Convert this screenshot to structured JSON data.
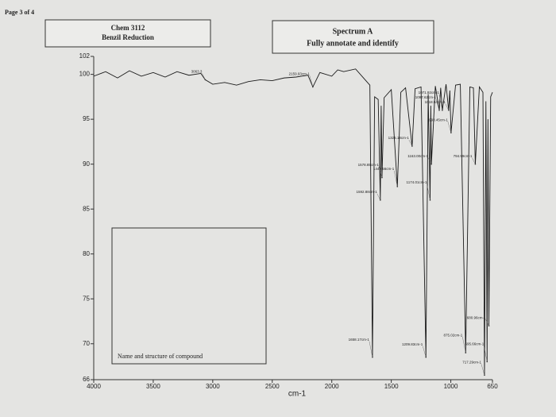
{
  "page_label": "Page 3 of 4",
  "header_left": [
    "Chem 3112",
    "Benzil Reduction"
  ],
  "header_right": [
    "Spectrum A",
    "Fully annotate and identify"
  ],
  "answer_box_label": "Name and structure of compound",
  "chart_data": {
    "type": "line",
    "x_label": "cm-1",
    "xlim": [
      4000,
      650
    ],
    "xticks": [
      4000,
      3500,
      3000,
      2500,
      2000,
      1500,
      1000,
      650
    ],
    "ylim": [
      66,
      102
    ],
    "yticks": [
      66,
      70,
      75,
      80,
      85,
      90,
      95,
      100,
      102
    ],
    "x": [
      4000,
      3900,
      3800,
      3700,
      3600,
      3500,
      3400,
      3300,
      3200,
      3100,
      3063,
      3000,
      2900,
      2800,
      2700,
      2600,
      2500,
      2400,
      2300,
      2200,
      2159,
      2100,
      2000,
      1950,
      1900,
      1800,
      1720,
      1680,
      1658,
      1640,
      1610,
      1592,
      1585,
      1578,
      1560,
      1500,
      1449,
      1420,
      1380,
      1325,
      1300,
      1250,
      1209,
      1190,
      1174,
      1168,
      1163,
      1130,
      1097,
      1085,
      1071,
      1040,
      1018,
      1008,
      998,
      960,
      920,
      875,
      840,
      810,
      794,
      760,
      730,
      717,
      705,
      695,
      688,
      680,
      665,
      650
    ],
    "series": [
      {
        "color": "#1a1a1a",
        "values": [
          99.8,
          100.3,
          99.6,
          100.4,
          99.8,
          100.2,
          99.7,
          100.3,
          99.9,
          100.1,
          99.4,
          98.9,
          99.1,
          98.8,
          99.2,
          99.4,
          99.3,
          99.6,
          99.7,
          99.9,
          98.6,
          100.2,
          99.8,
          100.5,
          100.3,
          100.6,
          99.4,
          98.8,
          68.5,
          97.5,
          97.2,
          86.0,
          96.5,
          88.5,
          97.4,
          98.3,
          87.5,
          98.0,
          98.5,
          92.0,
          98.4,
          98.6,
          68.5,
          97.8,
          86.0,
          96.5,
          90.0,
          98.7,
          96.0,
          98.5,
          96.0,
          98.9,
          96.0,
          98.2,
          93.5,
          98.8,
          98.9,
          69.0,
          98.6,
          98.5,
          90.0,
          98.6,
          98.0,
          66.5,
          97.0,
          68.0,
          95.0,
          72.0,
          97.5,
          98.0
        ]
      }
    ],
    "annotations": [
      {
        "text": "3063.3",
        "x": 3063,
        "y": 99.4
      },
      {
        "text": "2159.93cm-1",
        "x": 2159,
        "y": 98.6
      },
      {
        "text": "1658.17cm-1",
        "x": 1658,
        "y": 68.5
      },
      {
        "text": "1592.88cm-1",
        "x": 1592,
        "y": 86.0
      },
      {
        "text": "1578.85cm-1",
        "x": 1578,
        "y": 88.5
      },
      {
        "text": "1449.56cm-1",
        "x": 1449,
        "y": 87.5
      },
      {
        "text": "1325.18cm-1",
        "x": 1325,
        "y": 92.0
      },
      {
        "text": "1209.83cm-1",
        "x": 1209,
        "y": 68.5
      },
      {
        "text": "1174.01cm-1",
        "x": 1174,
        "y": 86.0
      },
      {
        "text": "1163.00cm-1",
        "x": 1163,
        "y": 90.0
      },
      {
        "text": "1097.62cm-1",
        "x": 1097,
        "y": 96.0
      },
      {
        "text": "1071.92cm-1",
        "x": 1071,
        "y": 96.0
      },
      {
        "text": "1018.54cm-1",
        "x": 1018,
        "y": 96.0
      },
      {
        "text": "998.45cm-1",
        "x": 998,
        "y": 93.5
      },
      {
        "text": "875.02cm-1",
        "x": 875,
        "y": 69.0
      },
      {
        "text": "794.99cm-1",
        "x": 794,
        "y": 90.0
      },
      {
        "text": "717.29cm-1",
        "x": 717,
        "y": 66.5
      },
      {
        "text": "695.66cm-1",
        "x": 695,
        "y": 68.0
      },
      {
        "text": "680.96cm-1",
        "x": 680,
        "y": 72.0
      }
    ]
  }
}
